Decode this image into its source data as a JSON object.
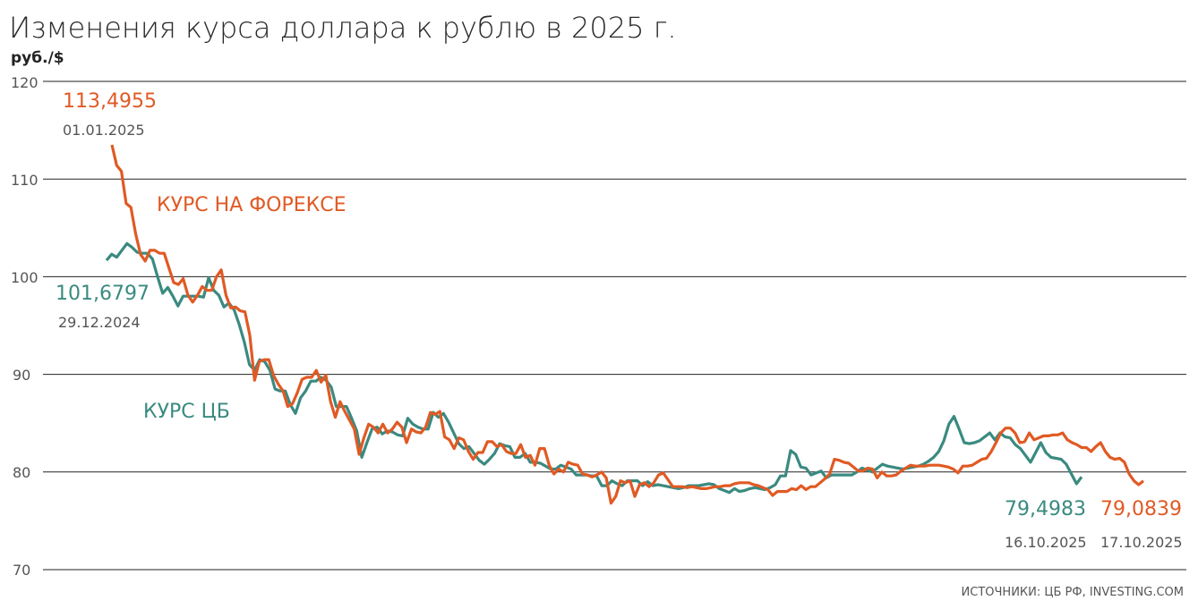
{
  "chart_data": {
    "type": "line",
    "title": "Изменения курса доллара к рублю в 2025 г.",
    "ylabel": "руб./$",
    "ylim": [
      70,
      120
    ],
    "yticks": [
      "70",
      "80",
      "90",
      "100",
      "110",
      "120"
    ],
    "grid": "horizontal",
    "source": "ИСТОЧНИКИ: ЦБ РФ, INVESTING.COM",
    "colors": {
      "forex": "#e05a24",
      "cb": "#3a8a80"
    },
    "series": [
      {
        "name": "КУРС НА ФОРЕКСЕ",
        "start_label": {
          "value": "113,4955",
          "date": "01.01.2025"
        },
        "end_label": {
          "value": "79,0839",
          "date": "17.10.2025"
        },
        "values": [
          113.5,
          111.4,
          110.8,
          107.5,
          107.1,
          104.4,
          102.3,
          101.6,
          102.7,
          102.7,
          102.4,
          102.4,
          100.9,
          99.4,
          99.2,
          99.8,
          98.1,
          97.4,
          98.1,
          99.0,
          98.6,
          98.6,
          100.0,
          100.7,
          98.1,
          96.8,
          96.9,
          96.5,
          96.4,
          94.0,
          89.4,
          91.3,
          91.5,
          91.5,
          89.9,
          89.0,
          88.3,
          86.7,
          87.0,
          88.1,
          89.5,
          89.7,
          89.7,
          90.4,
          89.2,
          89.9,
          87.2,
          85.6,
          87.2,
          86.2,
          85.3,
          84.4,
          81.8,
          83.5,
          84.9,
          84.6,
          84.0,
          84.9,
          84.0,
          84.4,
          85.1,
          84.6,
          83.0,
          84.4,
          84.1,
          84.0,
          84.6,
          86.1,
          85.9,
          86.2,
          83.6,
          83.3,
          82.4,
          83.5,
          83.3,
          82.1,
          81.3,
          82.0,
          82.0,
          83.1,
          83.1,
          82.6,
          82.8,
          82.1,
          81.9,
          81.9,
          82.8,
          81.5,
          81.7,
          80.7,
          82.4,
          82.4,
          80.7,
          79.8,
          80.3,
          80.0,
          81.0,
          80.8,
          80.7,
          79.8,
          79.7,
          79.5,
          79.7,
          80.0,
          79.4,
          76.8,
          77.5,
          79.1,
          78.9,
          79.1,
          77.5,
          78.7,
          78.9,
          78.5,
          78.9,
          79.7,
          79.9,
          79.2,
          78.5,
          78.5,
          78.5,
          78.4,
          78.5,
          78.4,
          78.3,
          78.3,
          78.4,
          78.5,
          78.5,
          78.6,
          78.6,
          78.8,
          78.9,
          78.9,
          78.9,
          78.7,
          78.6,
          78.4,
          78.2,
          77.6,
          78.0,
          78.0,
          78.0,
          78.3,
          78.2,
          78.6,
          78.2,
          78.5,
          78.5,
          78.9,
          79.3,
          79.8,
          81.3,
          81.2,
          81.0,
          80.9,
          80.5,
          80.1,
          80.1,
          80.4,
          80.3,
          79.4,
          80.0,
          79.6,
          79.6,
          79.7,
          80.1,
          80.4,
          80.7,
          80.6,
          80.6,
          80.6,
          80.7,
          80.7,
          80.7,
          80.6,
          80.5,
          80.3,
          79.9,
          80.6,
          80.6,
          80.7,
          81.0,
          81.3,
          81.4,
          82.1,
          83.0,
          84.0,
          84.5,
          84.5,
          84.0,
          83.0,
          83.1,
          84.0,
          83.3,
          83.5,
          83.7,
          83.7,
          83.8,
          83.8,
          84.0,
          83.3,
          83.0,
          82.8,
          82.5,
          82.5,
          82.1,
          82.6,
          83.0,
          82.1,
          81.5,
          81.3,
          81.4,
          81.0,
          79.8,
          79.1,
          78.7,
          79.08
        ]
      },
      {
        "name": "КУРС ЦБ",
        "start_label": {
          "value": "101,6797",
          "date": "29.12.2024"
        },
        "end_label": {
          "value": "79,4983",
          "date": "16.10.2025"
        },
        "values": [
          101.68,
          102.3,
          102.0,
          102.7,
          103.4,
          103.0,
          102.5,
          102.4,
          102.4,
          101.8,
          100.0,
          98.3,
          98.9,
          98.0,
          97.0,
          98.0,
          98.0,
          98.0,
          98.0,
          97.9,
          99.9,
          98.6,
          98.1,
          96.9,
          97.3,
          96.6,
          95.1,
          93.3,
          91.0,
          90.4,
          91.5,
          91.3,
          90.4,
          88.5,
          88.3,
          88.3,
          86.9,
          86.0,
          87.6,
          88.3,
          89.3,
          89.3,
          89.7,
          89.4,
          88.7,
          86.7,
          86.7,
          86.7,
          85.5,
          84.2,
          81.5,
          83.0,
          84.4,
          84.6,
          83.9,
          84.2,
          84.1,
          83.8,
          83.7,
          85.5,
          84.9,
          84.6,
          84.4,
          84.4,
          86.1,
          85.6,
          86.0,
          85.1,
          84.0,
          82.9,
          82.4,
          82.6,
          81.9,
          81.2,
          80.8,
          81.3,
          81.9,
          82.9,
          82.7,
          82.6,
          81.5,
          81.5,
          81.9,
          81.0,
          81.0,
          80.9,
          80.6,
          80.3,
          80.3,
          80.7,
          80.5,
          80.3,
          79.7,
          79.7,
          79.7,
          79.6,
          79.6,
          78.6,
          78.6,
          79.1,
          78.8,
          78.6,
          79.1,
          79.1,
          79.1,
          78.6,
          79.0,
          78.6,
          78.7,
          78.6,
          78.5,
          78.4,
          78.3,
          78.4,
          78.6,
          78.6,
          78.6,
          78.7,
          78.8,
          78.7,
          78.3,
          78.1,
          77.9,
          78.3,
          78.0,
          78.1,
          78.3,
          78.4,
          78.3,
          78.2,
          78.4,
          78.7,
          79.6,
          79.6,
          82.2,
          81.8,
          80.5,
          80.4,
          79.7,
          79.9,
          80.1,
          79.4,
          79.7,
          79.7,
          79.7,
          79.7,
          79.7,
          80.0,
          80.4,
          80.2,
          80.0,
          80.4,
          80.8,
          80.6,
          80.5,
          80.4,
          80.3,
          80.4,
          80.5,
          80.6,
          80.8,
          81.1,
          81.5,
          82.1,
          83.2,
          84.9,
          85.7,
          84.4,
          83.0,
          82.9,
          83.0,
          83.2,
          83.6,
          84.0,
          83.3,
          84.0,
          83.6,
          83.5,
          82.8,
          82.4,
          81.7,
          81.0,
          82.0,
          83.0,
          82.0,
          81.5,
          81.4,
          81.3,
          80.8,
          79.8,
          78.8,
          79.5
        ]
      }
    ]
  }
}
